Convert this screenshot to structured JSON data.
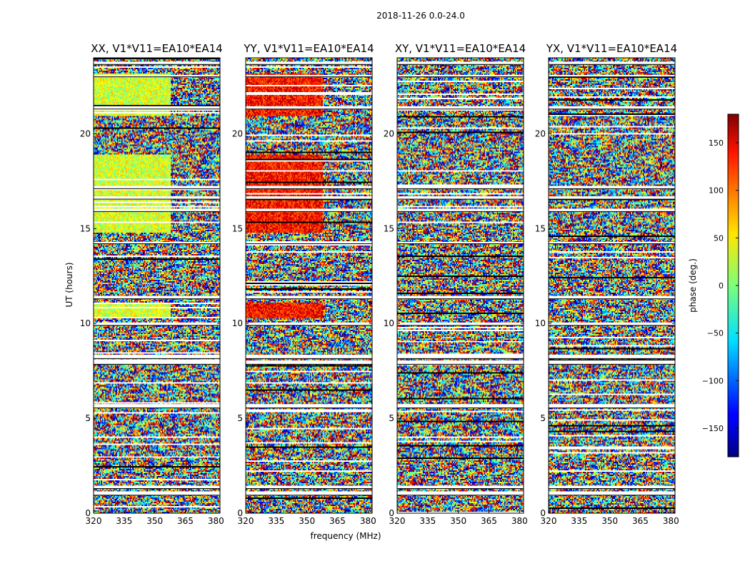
{
  "chart_data": {
    "type": "heatmap",
    "suptitle": "2018-11-26 0.0-24.0",
    "xlabel": "frequency (MHz)",
    "ylabel": "UT (hours)",
    "xlim": [
      320,
      382
    ],
    "ylim": [
      0,
      24
    ],
    "x_ticks": [
      320,
      335,
      350,
      365,
      380
    ],
    "y_ticks": [
      0,
      5,
      10,
      15,
      20
    ],
    "panels": [
      {
        "title": "XX, V1*V11=EA10*EA14",
        "coherent_phase": 30,
        "coherent_span_mhz": [
          320,
          358
        ]
      },
      {
        "title": "YY, V1*V11=EA10*EA14",
        "coherent_phase": 130,
        "coherent_span_mhz": [
          320,
          358
        ]
      },
      {
        "title": "XY, V1*V11=EA10*EA14",
        "coherent_phase": null,
        "coherent_span_mhz": null
      },
      {
        "title": "YX, V1*V11=EA10*EA14",
        "coherent_phase": null,
        "coherent_span_mhz": null
      }
    ],
    "colorbar": {
      "label": "phase (deg.)",
      "range": [
        -180,
        180
      ],
      "ticks": [
        150,
        100,
        50,
        0,
        -50,
        -100,
        -150
      ],
      "tick_labels": [
        "150",
        "100",
        "50",
        "0",
        "−50",
        "−100",
        "−150"
      ],
      "colormap": "jet"
    },
    "flagged_bands_ut": [
      [
        0.95,
        1.15
      ],
      [
        1.3,
        1.45
      ],
      [
        5.55,
        5.75
      ],
      [
        7.85,
        8.05
      ],
      [
        8.15,
        8.35
      ],
      [
        9.9,
        10.05
      ],
      [
        11.3,
        11.45
      ],
      [
        14.2,
        14.3
      ],
      [
        15.9,
        16.05
      ],
      [
        16.55,
        16.7
      ],
      [
        17.1,
        17.25
      ],
      [
        21.3,
        21.45
      ],
      [
        23.0,
        23.1
      ],
      [
        23.65,
        23.8
      ]
    ],
    "coherent_intervals_ut": [
      [
        10.3,
        11.1
      ],
      [
        14.8,
        18.2
      ],
      [
        18.0,
        18.9
      ],
      [
        20.9,
        23.2
      ]
    ]
  }
}
